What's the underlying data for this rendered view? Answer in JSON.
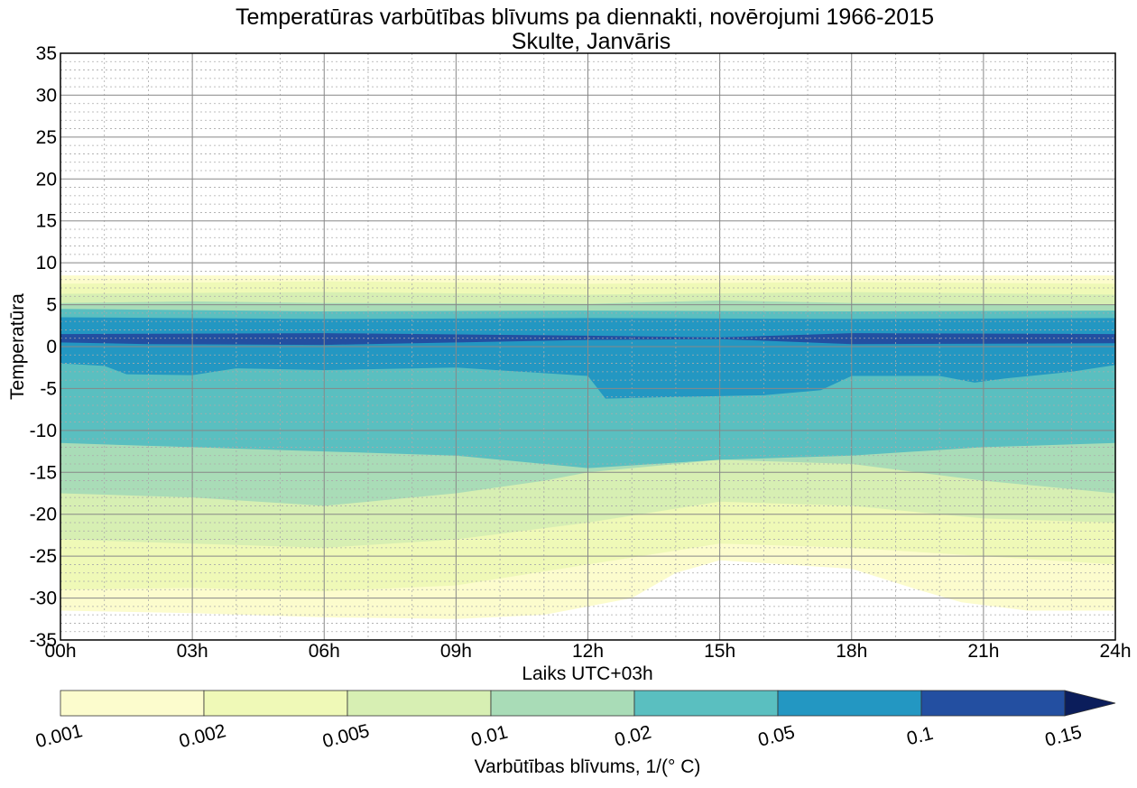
{
  "chart_data": {
    "type": "contourf",
    "title": "Temperatūras varbūtības blīvums pa diennakti, novērojumi 1966-2015",
    "subtitle": "Skulte, Janvāris",
    "xlabel": "Laiks UTC+03h",
    "ylabel": "Temperatūra",
    "xlim": [
      0,
      24
    ],
    "ylim": [
      -35,
      35
    ],
    "x_ticks": [
      "00h",
      "03h",
      "06h",
      "09h",
      "12h",
      "15h",
      "18h",
      "21h",
      "24h"
    ],
    "y_ticks": [
      35,
      30,
      25,
      20,
      15,
      10,
      5,
      0,
      -5,
      -10,
      -15,
      -20,
      -25,
      -30,
      -35
    ],
    "grid": true,
    "colorbar": {
      "label": "Varbūtības blīvums, 1/(° C)",
      "levels": [
        "0.001",
        "0.002",
        "0.005",
        "0.01",
        "0.02",
        "0.05",
        "0.1",
        "0.15"
      ],
      "colors": [
        "#fcfccd",
        "#eff9b7",
        "#d7efb3",
        "#a9dcb7",
        "#5abfc0",
        "#2397c2",
        "#234fa1",
        "#0b1d5b"
      ],
      "extend": "max"
    },
    "bands": [
      {
        "level": "0.001",
        "top": [
          [
            0,
            8.5
          ],
          [
            24,
            8.5
          ]
        ],
        "bottom": [
          [
            0,
            -31.5
          ],
          [
            3,
            -31.8
          ],
          [
            6,
            -32.3
          ],
          [
            9,
            -32.5
          ],
          [
            11,
            -32
          ],
          [
            12,
            -31
          ],
          [
            13,
            -30
          ],
          [
            14,
            -27
          ],
          [
            15,
            -25.5
          ],
          [
            18,
            -26.5
          ],
          [
            19.5,
            -29
          ],
          [
            20.5,
            -30.5
          ],
          [
            22,
            -31.5
          ],
          [
            24,
            -31.5
          ]
        ]
      },
      {
        "level": "0.002",
        "top": [
          [
            0,
            7.5
          ],
          [
            6,
            7.8
          ],
          [
            12,
            7.5
          ],
          [
            18,
            7.7
          ],
          [
            24,
            7.5
          ]
        ],
        "bottom": [
          [
            0,
            -29
          ],
          [
            3,
            -28.8
          ],
          [
            6,
            -29.2
          ],
          [
            9,
            -28.5
          ],
          [
            12,
            -26
          ],
          [
            15,
            -23.5
          ],
          [
            18,
            -24
          ],
          [
            21,
            -25
          ],
          [
            24,
            -26
          ]
        ]
      },
      {
        "level": "0.005",
        "top": [
          [
            0,
            6.3
          ],
          [
            6,
            6.5
          ],
          [
            12,
            6.2
          ],
          [
            18,
            6.5
          ],
          [
            24,
            6.2
          ]
        ],
        "bottom": [
          [
            0,
            -23
          ],
          [
            3,
            -23.5
          ],
          [
            6,
            -24
          ],
          [
            9,
            -23
          ],
          [
            12,
            -21
          ],
          [
            15,
            -18.5
          ],
          [
            18,
            -19
          ],
          [
            21,
            -20.5
          ],
          [
            24,
            -21
          ]
        ]
      },
      {
        "level": "0.01",
        "top": [
          [
            0,
            5.2
          ],
          [
            3,
            5.4
          ],
          [
            6,
            5.2
          ],
          [
            12,
            5.1
          ],
          [
            15,
            5.5
          ],
          [
            18,
            5.2
          ],
          [
            24,
            5
          ]
        ],
        "bottom": [
          [
            0,
            -17.5
          ],
          [
            3,
            -18
          ],
          [
            6,
            -19
          ],
          [
            9,
            -17.5
          ],
          [
            11,
            -16
          ],
          [
            12,
            -15
          ],
          [
            15,
            -13.5
          ],
          [
            18,
            -14
          ],
          [
            21,
            -16
          ],
          [
            24,
            -17.5
          ]
        ]
      },
      {
        "level": "0.02",
        "top": [
          [
            0,
            4.5
          ],
          [
            6,
            4.2
          ],
          [
            12,
            4.3
          ],
          [
            18,
            4.2
          ],
          [
            24,
            4.3
          ]
        ],
        "bottom": [
          [
            0,
            -11.5
          ],
          [
            3,
            -12
          ],
          [
            6,
            -12.5
          ],
          [
            9,
            -13
          ],
          [
            11,
            -14
          ],
          [
            12,
            -14.5
          ],
          [
            15,
            -13.5
          ],
          [
            18,
            -13
          ],
          [
            21,
            -12
          ],
          [
            24,
            -11.5
          ]
        ]
      },
      {
        "level": "0.05",
        "top": [
          [
            0,
            3.5
          ],
          [
            6,
            3.3
          ],
          [
            12,
            3.4
          ],
          [
            18,
            3.3
          ],
          [
            24,
            3.4
          ]
        ],
        "bottom": [
          [
            0,
            -2
          ],
          [
            1,
            -2.3
          ],
          [
            1.5,
            -3.3
          ],
          [
            3,
            -3.4
          ],
          [
            4,
            -2.6
          ],
          [
            6,
            -2.8
          ],
          [
            9,
            -2.5
          ],
          [
            12,
            -3.5
          ],
          [
            12.4,
            -6.2
          ],
          [
            14,
            -6
          ],
          [
            16,
            -5.8
          ],
          [
            17.3,
            -5.2
          ],
          [
            18,
            -3.5
          ],
          [
            20,
            -3.5
          ],
          [
            20.8,
            -4.3
          ],
          [
            21.5,
            -3.8
          ],
          [
            23,
            -3
          ],
          [
            24,
            -2.2
          ]
        ]
      },
      {
        "level": "0.1",
        "top": [
          [
            0,
            1.5
          ],
          [
            6,
            1.6
          ],
          [
            12,
            1.3
          ],
          [
            15,
            1.1
          ],
          [
            18,
            1.6
          ],
          [
            24,
            1.5
          ]
        ],
        "bottom": [
          [
            0,
            0.5
          ],
          [
            2,
            0.3
          ],
          [
            6,
            0.2
          ],
          [
            9,
            0.5
          ],
          [
            12,
            0.8
          ],
          [
            15,
            0.9
          ],
          [
            18,
            0.3
          ],
          [
            24,
            0.4
          ]
        ]
      }
    ]
  }
}
